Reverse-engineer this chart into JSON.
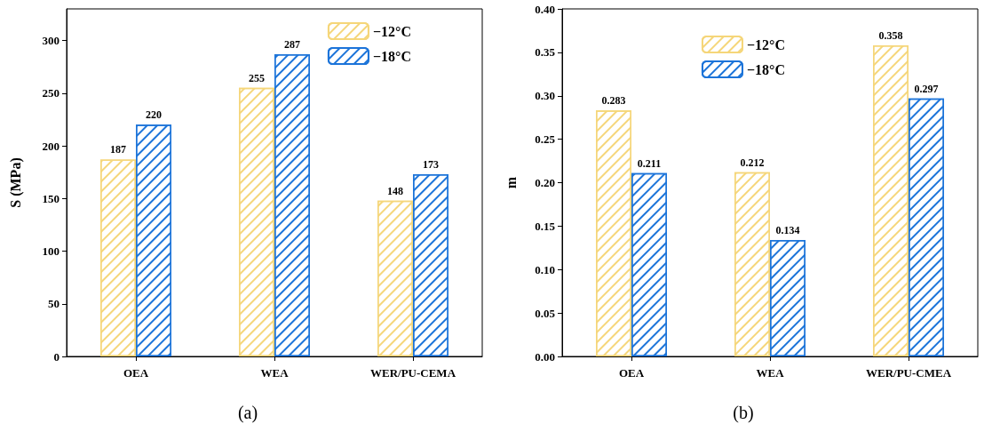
{
  "chart_data": [
    {
      "type": "bar",
      "categories": [
        "OEA",
        "WEA",
        "WER/PU-CEMA"
      ],
      "ylabel": "S (MPa)",
      "ylim": [
        0,
        330
      ],
      "yticks": [
        0,
        50,
        100,
        150,
        200,
        250,
        300
      ],
      "grid": false,
      "legend": "top right",
      "data_labels": true,
      "annotations": [
        "(a)"
      ],
      "series": [
        {
          "name": "−12°C",
          "color": "#f5d67a",
          "values": [
            187,
            255,
            148
          ]
        },
        {
          "name": "−18°C",
          "color": "#1c74d9",
          "values": [
            220,
            287,
            173
          ]
        }
      ]
    },
    {
      "type": "bar",
      "categories": [
        "OEA",
        "WEA",
        "WER/PU-CMEA"
      ],
      "ylabel": "m",
      "ylim": [
        0,
        0.4
      ],
      "yticks": [
        {
          "value": 0,
          "label": "0.00"
        },
        {
          "value": 0.05,
          "label": "0.05"
        },
        {
          "value": 0.1,
          "label": "0.10"
        },
        {
          "value": 0.15,
          "label": "0.15"
        },
        {
          "value": 0.2,
          "label": "0.20"
        },
        {
          "value": 0.25,
          "label": "0.25"
        },
        {
          "value": 0.3,
          "label": "0.30"
        },
        {
          "value": 0.35,
          "label": "0.35"
        },
        {
          "value": 0.4,
          "label": "0.40"
        }
      ],
      "grid": false,
      "legend": "top",
      "data_labels": true,
      "annotations": [
        "(b)"
      ],
      "series": [
        {
          "name": "−12°C",
          "color": "#f5d67a",
          "values": [
            0.283,
            0.212,
            0.358
          ]
        },
        {
          "name": "−18°C",
          "color": "#1c74d9",
          "values": [
            0.211,
            0.134,
            0.297
          ]
        }
      ]
    }
  ]
}
